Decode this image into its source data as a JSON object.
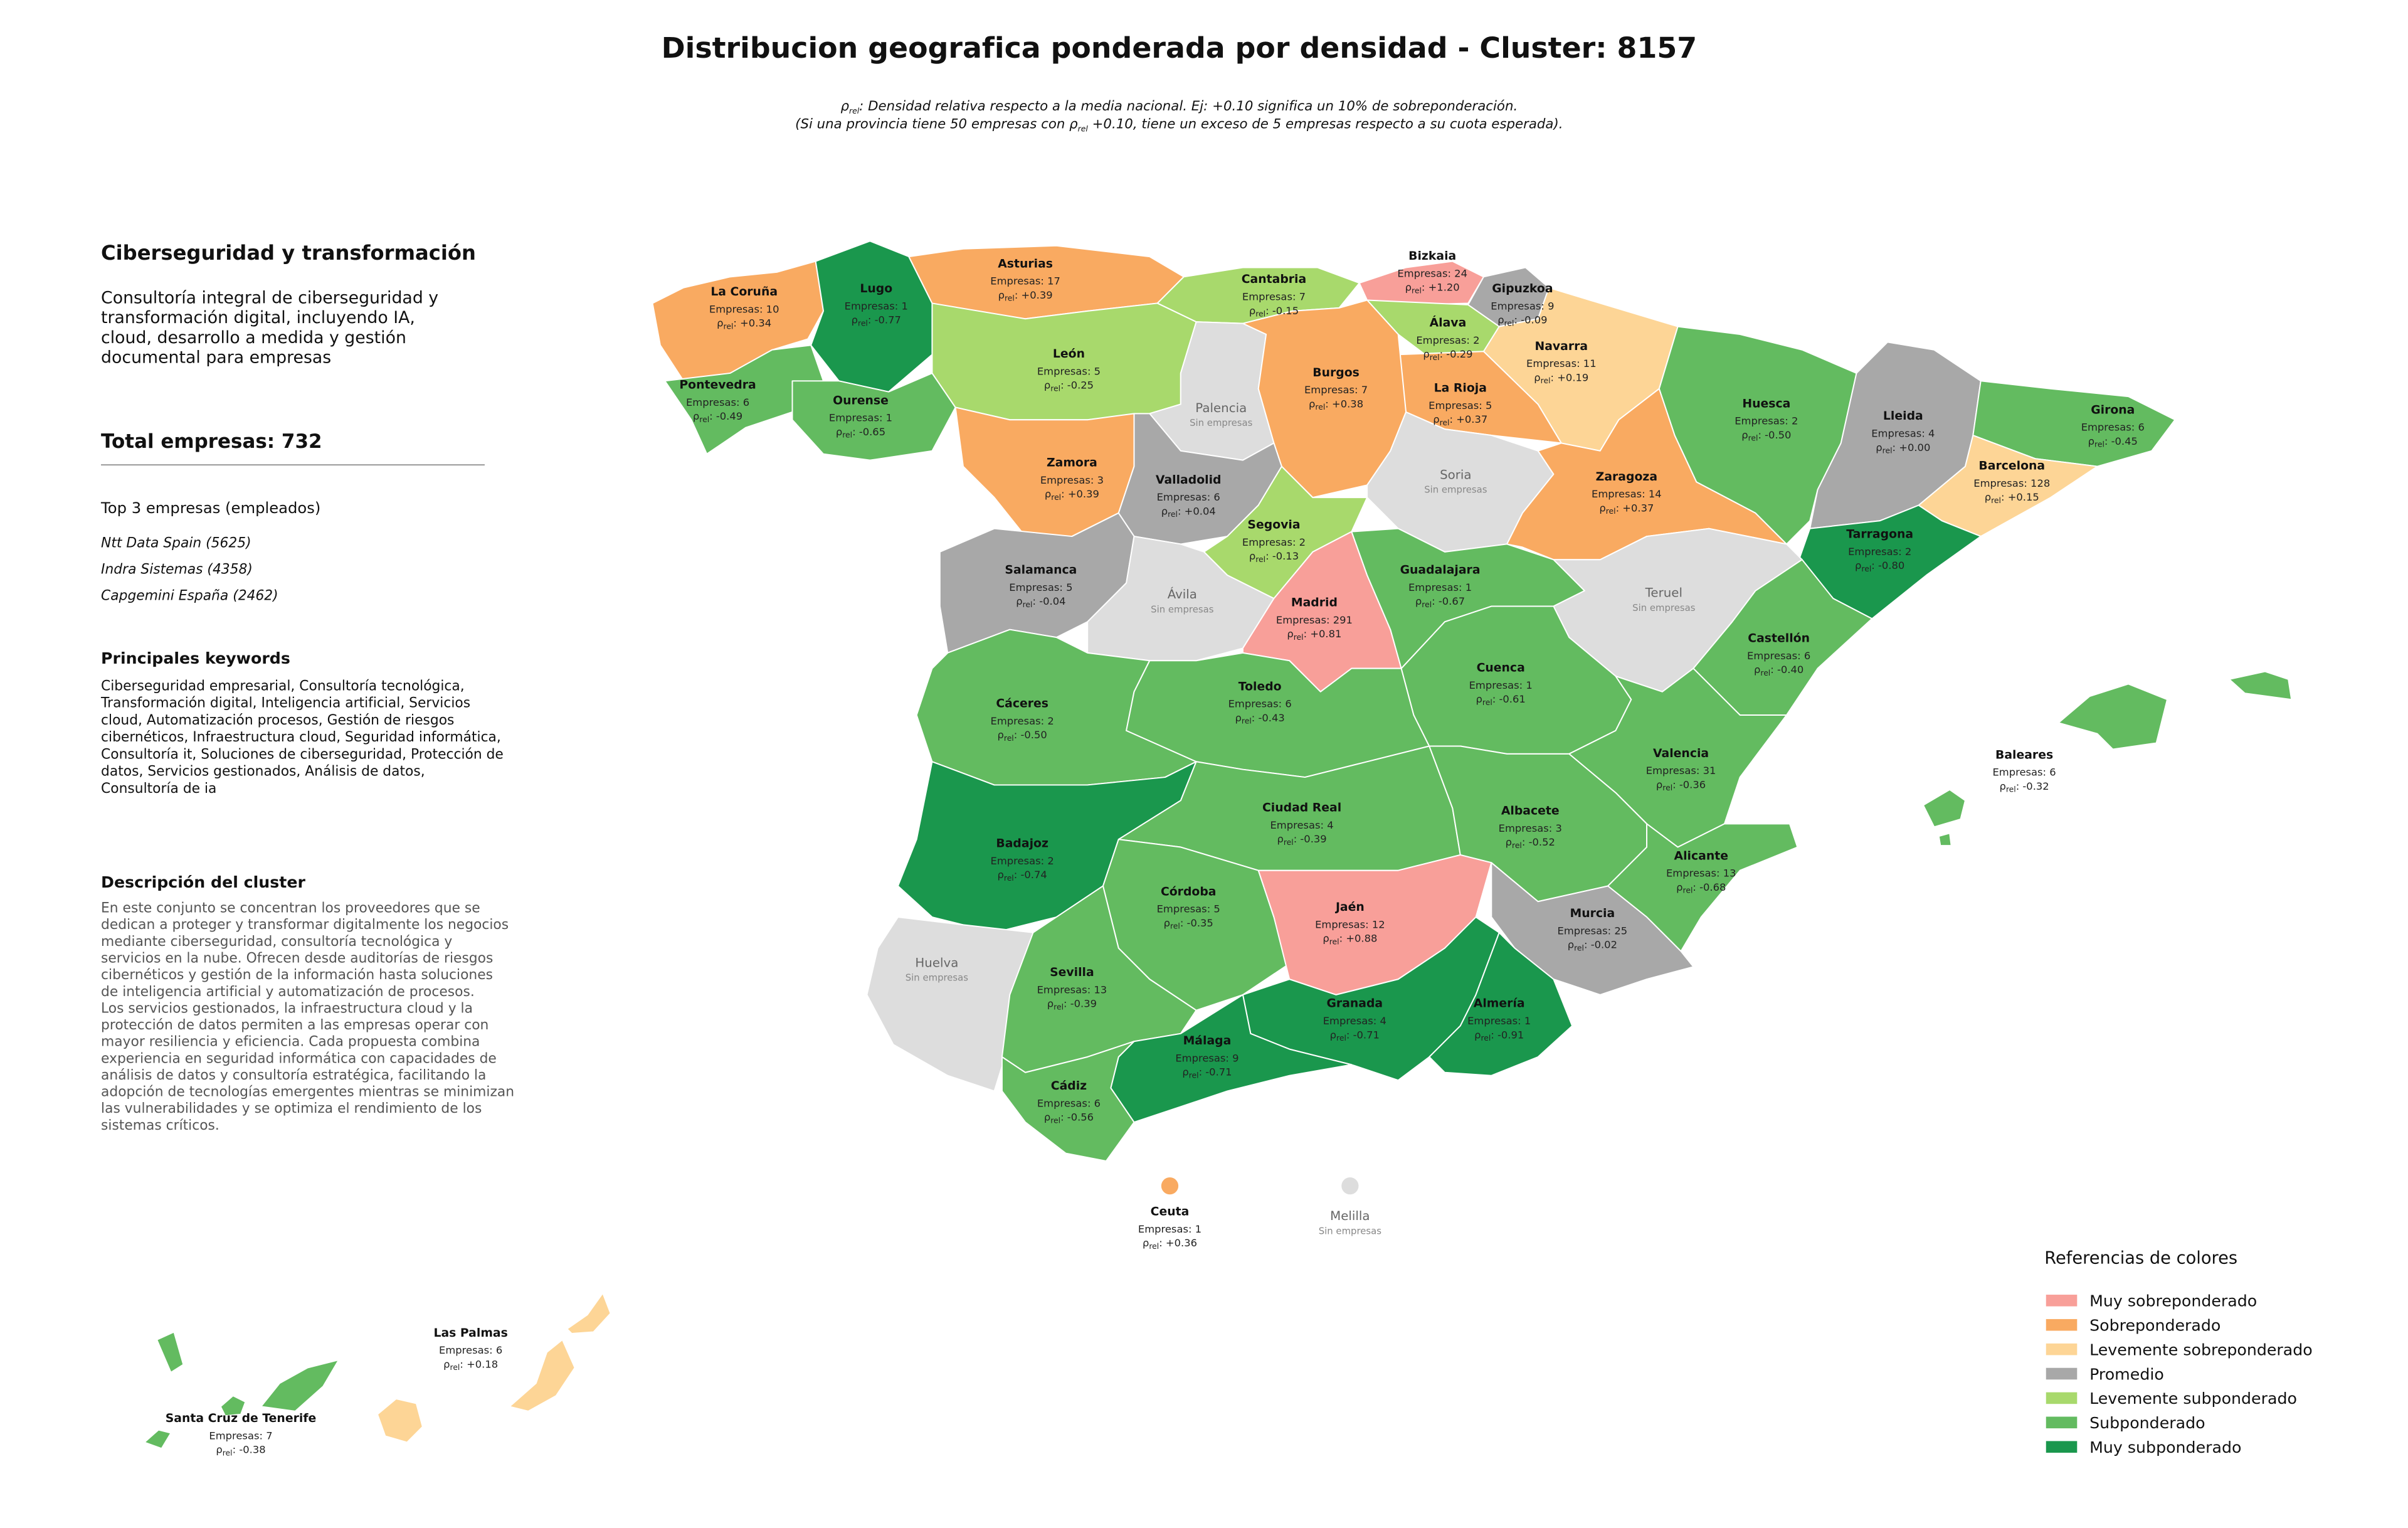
{
  "title": "Distribucion geografica ponderada por densidad - Cluster: 8157",
  "subtitle_lines": [
    [
      {
        "text": "ρ"
      },
      {
        "text": "rel",
        "sub": true
      },
      {
        "text": ": Densidad relativa respecto a la media nacional. Ej: +0.10 significa un 10% de sobreponderación."
      }
    ],
    [
      {
        "text": "(Si una provincia tiene 50 empresas con "
      },
      {
        "text": "ρ"
      },
      {
        "text": "rel",
        "sub": true
      },
      {
        "text": " +0.10, tiene un exceso de 5 empresas respecto a su cuota esperada)."
      }
    ]
  ],
  "panel": {
    "heading": "Ciberseguridad y transformación",
    "summary_lines": [
      "Consultoría integral de ciberseguridad y",
      "transformación digital, incluyendo IA,",
      "cloud, desarrollo a medida y gestión",
      "documental para empresas"
    ],
    "total": "Total empresas: 732",
    "top_title": "Top 3 empresas (empleados)",
    "top_companies": [
      "Ntt Data Spain (5625)",
      "Indra Sistemas (4358)",
      "Capgemini España (2462)"
    ],
    "keywords_title": "Principales keywords",
    "keywords_lines": [
      "Ciberseguridad empresarial, Consultoría tecnológica,",
      "Transformación digital, Inteligencia artificial, Servicios",
      "cloud, Automatización procesos, Gestión de riesgos",
      "cibernéticos, Infraestructura cloud, Seguridad informática,",
      "Consultoría it, Soluciones de ciberseguridad, Protección de",
      "datos, Servicios gestionados, Análisis de datos,",
      "Consultoría de ia"
    ],
    "description_title": "Descripción del cluster",
    "description_lines": [
      "En este conjunto se concentran los proveedores que se",
      "dedican a proteger y transformar digitalmente los negocios",
      "mediante ciberseguridad, consultoría tecnológica y",
      "servicios en la nube. Ofrecen desde auditorías de riesgos",
      "cibernéticos y gestión de la información hasta soluciones",
      "de inteligencia artificial y automatización de procesos.",
      "Los servicios gestionados, la infraestructura cloud y la",
      "protección de datos permiten a las empresas operar con",
      "mayor resiliencia y eficiencia. Cada propuesta combina",
      "experiencia en seguridad informática con capacidades de",
      "análisis de datos y consultoría estratégica, facilitando la",
      "adopción de tecnologías emergentes mientras se minimizan",
      "las vulnerabilidades y se optimiza el rendimiento de los",
      "sistemas críticos."
    ]
  },
  "empresas_label": "Empresas:",
  "rho_label": {
    "symbol": "ρ",
    "subscript": "rel",
    "suffix": ":"
  },
  "no_companies_label": "Sin empresas",
  "no_data_color": "#dddddd",
  "legend": {
    "title": "Referencias de colores",
    "items": [
      {
        "label": "Muy sobreponderado",
        "color": "#f89f99"
      },
      {
        "label": "Sobreponderado",
        "color": "#f9aa61"
      },
      {
        "label": "Levemente sobreponderado",
        "color": "#fdd596"
      },
      {
        "label": "Promedio",
        "color": "#a8a8a8"
      },
      {
        "label": "Levemente subponderado",
        "color": "#a8d96c"
      },
      {
        "label": "Subponderado",
        "color": "#63bb60"
      },
      {
        "label": "Muy subponderado",
        "color": "#1a974d"
      }
    ]
  },
  "provinces": [
    {
      "name": "La Coruña",
      "empresas": 10,
      "rho": "+0.34",
      "category": 1
    },
    {
      "name": "Lugo",
      "empresas": 1,
      "rho": "-0.77",
      "category": 6
    },
    {
      "name": "Asturias",
      "empresas": 17,
      "rho": "+0.39",
      "category": 1
    },
    {
      "name": "Cantabria",
      "empresas": 7,
      "rho": "-0.15",
      "category": 4
    },
    {
      "name": "Bizkaia",
      "empresas": 24,
      "rho": "+1.20",
      "category": 0
    },
    {
      "name": "Gipuzkoa",
      "empresas": 9,
      "rho": "-0.09",
      "category": 3
    },
    {
      "name": "Álava",
      "empresas": 2,
      "rho": "-0.29",
      "category": 4
    },
    {
      "name": "Navarra",
      "empresas": 11,
      "rho": "+0.19",
      "category": 2
    },
    {
      "name": "La Rioja",
      "empresas": 5,
      "rho": "+0.37",
      "category": 1
    },
    {
      "name": "Pontevedra",
      "empresas": 6,
      "rho": "-0.49",
      "category": 5
    },
    {
      "name": "Ourense",
      "empresas": 1,
      "rho": "-0.65",
      "category": 5
    },
    {
      "name": "León",
      "empresas": 5,
      "rho": "-0.25",
      "category": 4
    },
    {
      "name": "Palencia"
    },
    {
      "name": "Burgos",
      "empresas": 7,
      "rho": "+0.38",
      "category": 1
    },
    {
      "name": "Zamora",
      "empresas": 3,
      "rho": "+0.39",
      "category": 1
    },
    {
      "name": "Valladolid",
      "empresas": 6,
      "rho": "+0.04",
      "category": 3
    },
    {
      "name": "Soria"
    },
    {
      "name": "Zaragoza",
      "empresas": 14,
      "rho": "+0.37",
      "category": 1
    },
    {
      "name": "Huesca",
      "empresas": 2,
      "rho": "-0.50",
      "category": 5
    },
    {
      "name": "Lleida",
      "empresas": 4,
      "rho": "+0.00",
      "category": 3
    },
    {
      "name": "Girona",
      "empresas": 6,
      "rho": "-0.45",
      "category": 5
    },
    {
      "name": "Barcelona",
      "empresas": 128,
      "rho": "+0.15",
      "category": 2
    },
    {
      "name": "Tarragona",
      "empresas": 2,
      "rho": "-0.80",
      "category": 6
    },
    {
      "name": "Salamanca",
      "empresas": 5,
      "rho": "-0.04",
      "category": 3
    },
    {
      "name": "Segovia",
      "empresas": 2,
      "rho": "-0.13",
      "category": 4
    },
    {
      "name": "Ávila"
    },
    {
      "name": "Madrid",
      "empresas": 291,
      "rho": "+0.81",
      "category": 0
    },
    {
      "name": "Guadalajara",
      "empresas": 1,
      "rho": "-0.67",
      "category": 5
    },
    {
      "name": "Teruel"
    },
    {
      "name": "Castellón",
      "empresas": 6,
      "rho": "-0.40",
      "category": 5
    },
    {
      "name": "Cáceres",
      "empresas": 2,
      "rho": "-0.50",
      "category": 5
    },
    {
      "name": "Toledo",
      "empresas": 6,
      "rho": "-0.43",
      "category": 5
    },
    {
      "name": "Cuenca",
      "empresas": 1,
      "rho": "-0.61",
      "category": 5
    },
    {
      "name": "Valencia",
      "empresas": 31,
      "rho": "-0.36",
      "category": 5
    },
    {
      "name": "Badajoz",
      "empresas": 2,
      "rho": "-0.74",
      "category": 6
    },
    {
      "name": "Ciudad Real",
      "empresas": 4,
      "rho": "-0.39",
      "category": 5
    },
    {
      "name": "Albacete",
      "empresas": 3,
      "rho": "-0.52",
      "category": 5
    },
    {
      "name": "Alicante",
      "empresas": 13,
      "rho": "-0.68",
      "category": 5
    },
    {
      "name": "Córdoba",
      "empresas": 5,
      "rho": "-0.35",
      "category": 5
    },
    {
      "name": "Jaén",
      "empresas": 12,
      "rho": "+0.88",
      "category": 0
    },
    {
      "name": "Murcia",
      "empresas": 25,
      "rho": "-0.02",
      "category": 3
    },
    {
      "name": "Huelva"
    },
    {
      "name": "Sevilla",
      "empresas": 13,
      "rho": "-0.39",
      "category": 5
    },
    {
      "name": "Granada",
      "empresas": 4,
      "rho": "-0.71",
      "category": 6
    },
    {
      "name": "Almería",
      "empresas": 1,
      "rho": "-0.91",
      "category": 6
    },
    {
      "name": "Málaga",
      "empresas": 9,
      "rho": "-0.71",
      "category": 6
    },
    {
      "name": "Cádiz",
      "empresas": 6,
      "rho": "-0.56",
      "category": 5
    },
    {
      "name": "Baleares",
      "empresas": 6,
      "rho": "-0.32",
      "category": 5
    },
    {
      "name": "Las Palmas",
      "empresas": 6,
      "rho": "+0.18",
      "category": 2
    },
    {
      "name": "Santa Cruz de Tenerife",
      "empresas": 7,
      "rho": "-0.38",
      "category": 5
    },
    {
      "name": "Ceuta",
      "empresas": 1,
      "rho": "+0.36",
      "category": 1
    },
    {
      "name": "Melilla"
    }
  ]
}
